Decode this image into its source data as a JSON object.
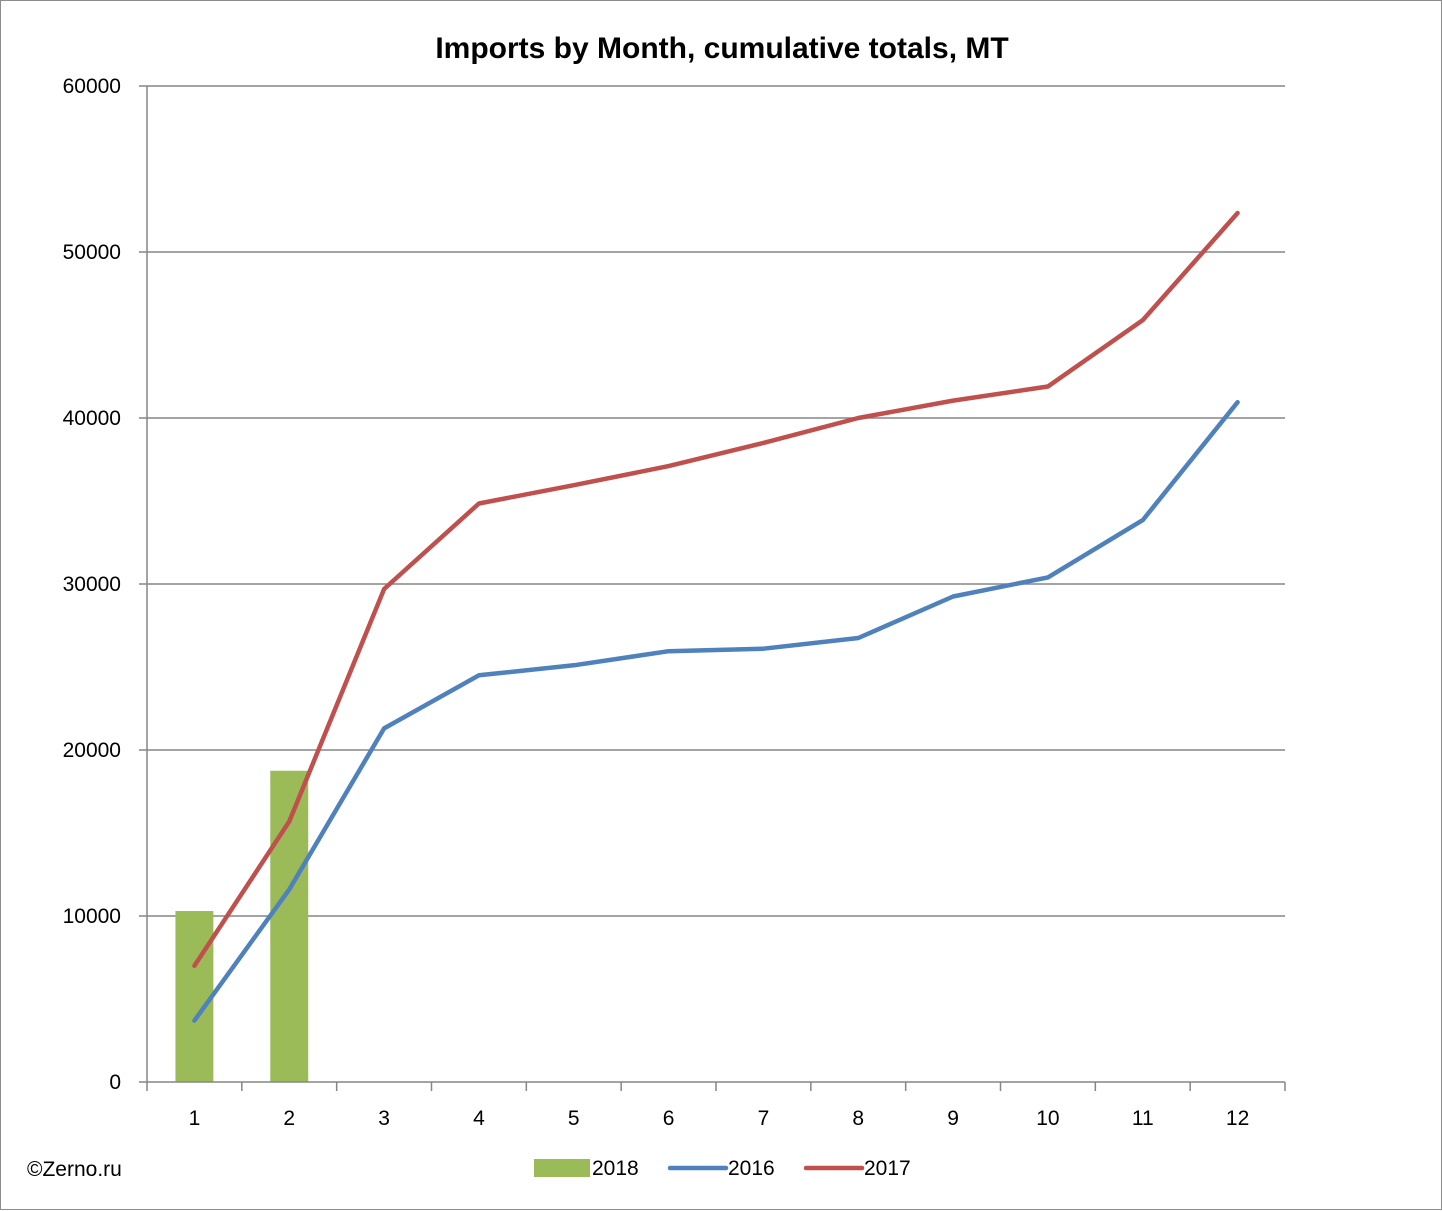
{
  "credit": "©Zerno.ru",
  "chart_data": {
    "type": "bar",
    "title": "Imports by Month, cumulative totals, MT",
    "xlabel": "",
    "ylabel": "",
    "categories": [
      "1",
      "2",
      "3",
      "4",
      "5",
      "6",
      "7",
      "8",
      "9",
      "10",
      "11",
      "12"
    ],
    "ylim": [
      0,
      60000
    ],
    "yticks": [
      "0",
      "10000",
      "20000",
      "30000",
      "40000",
      "50000",
      "60000"
    ],
    "grid": true,
    "legend_position": "bottom",
    "series": [
      {
        "name": "2018",
        "kind": "bar",
        "color": "#9bbb59",
        "values": [
          10300,
          18750,
          null,
          null,
          null,
          null,
          null,
          null,
          null,
          null,
          null,
          null
        ]
      },
      {
        "name": "2016",
        "kind": "line",
        "color": "#4f81bd",
        "values": [
          3700,
          11600,
          21300,
          24500,
          25100,
          25950,
          26100,
          26750,
          29250,
          30400,
          33850,
          40950
        ]
      },
      {
        "name": "2017",
        "kind": "line",
        "color": "#c0504d",
        "values": [
          7000,
          15700,
          29700,
          34850,
          35950,
          37100,
          38500,
          40000,
          41050,
          41900,
          45900,
          52350
        ]
      }
    ]
  }
}
